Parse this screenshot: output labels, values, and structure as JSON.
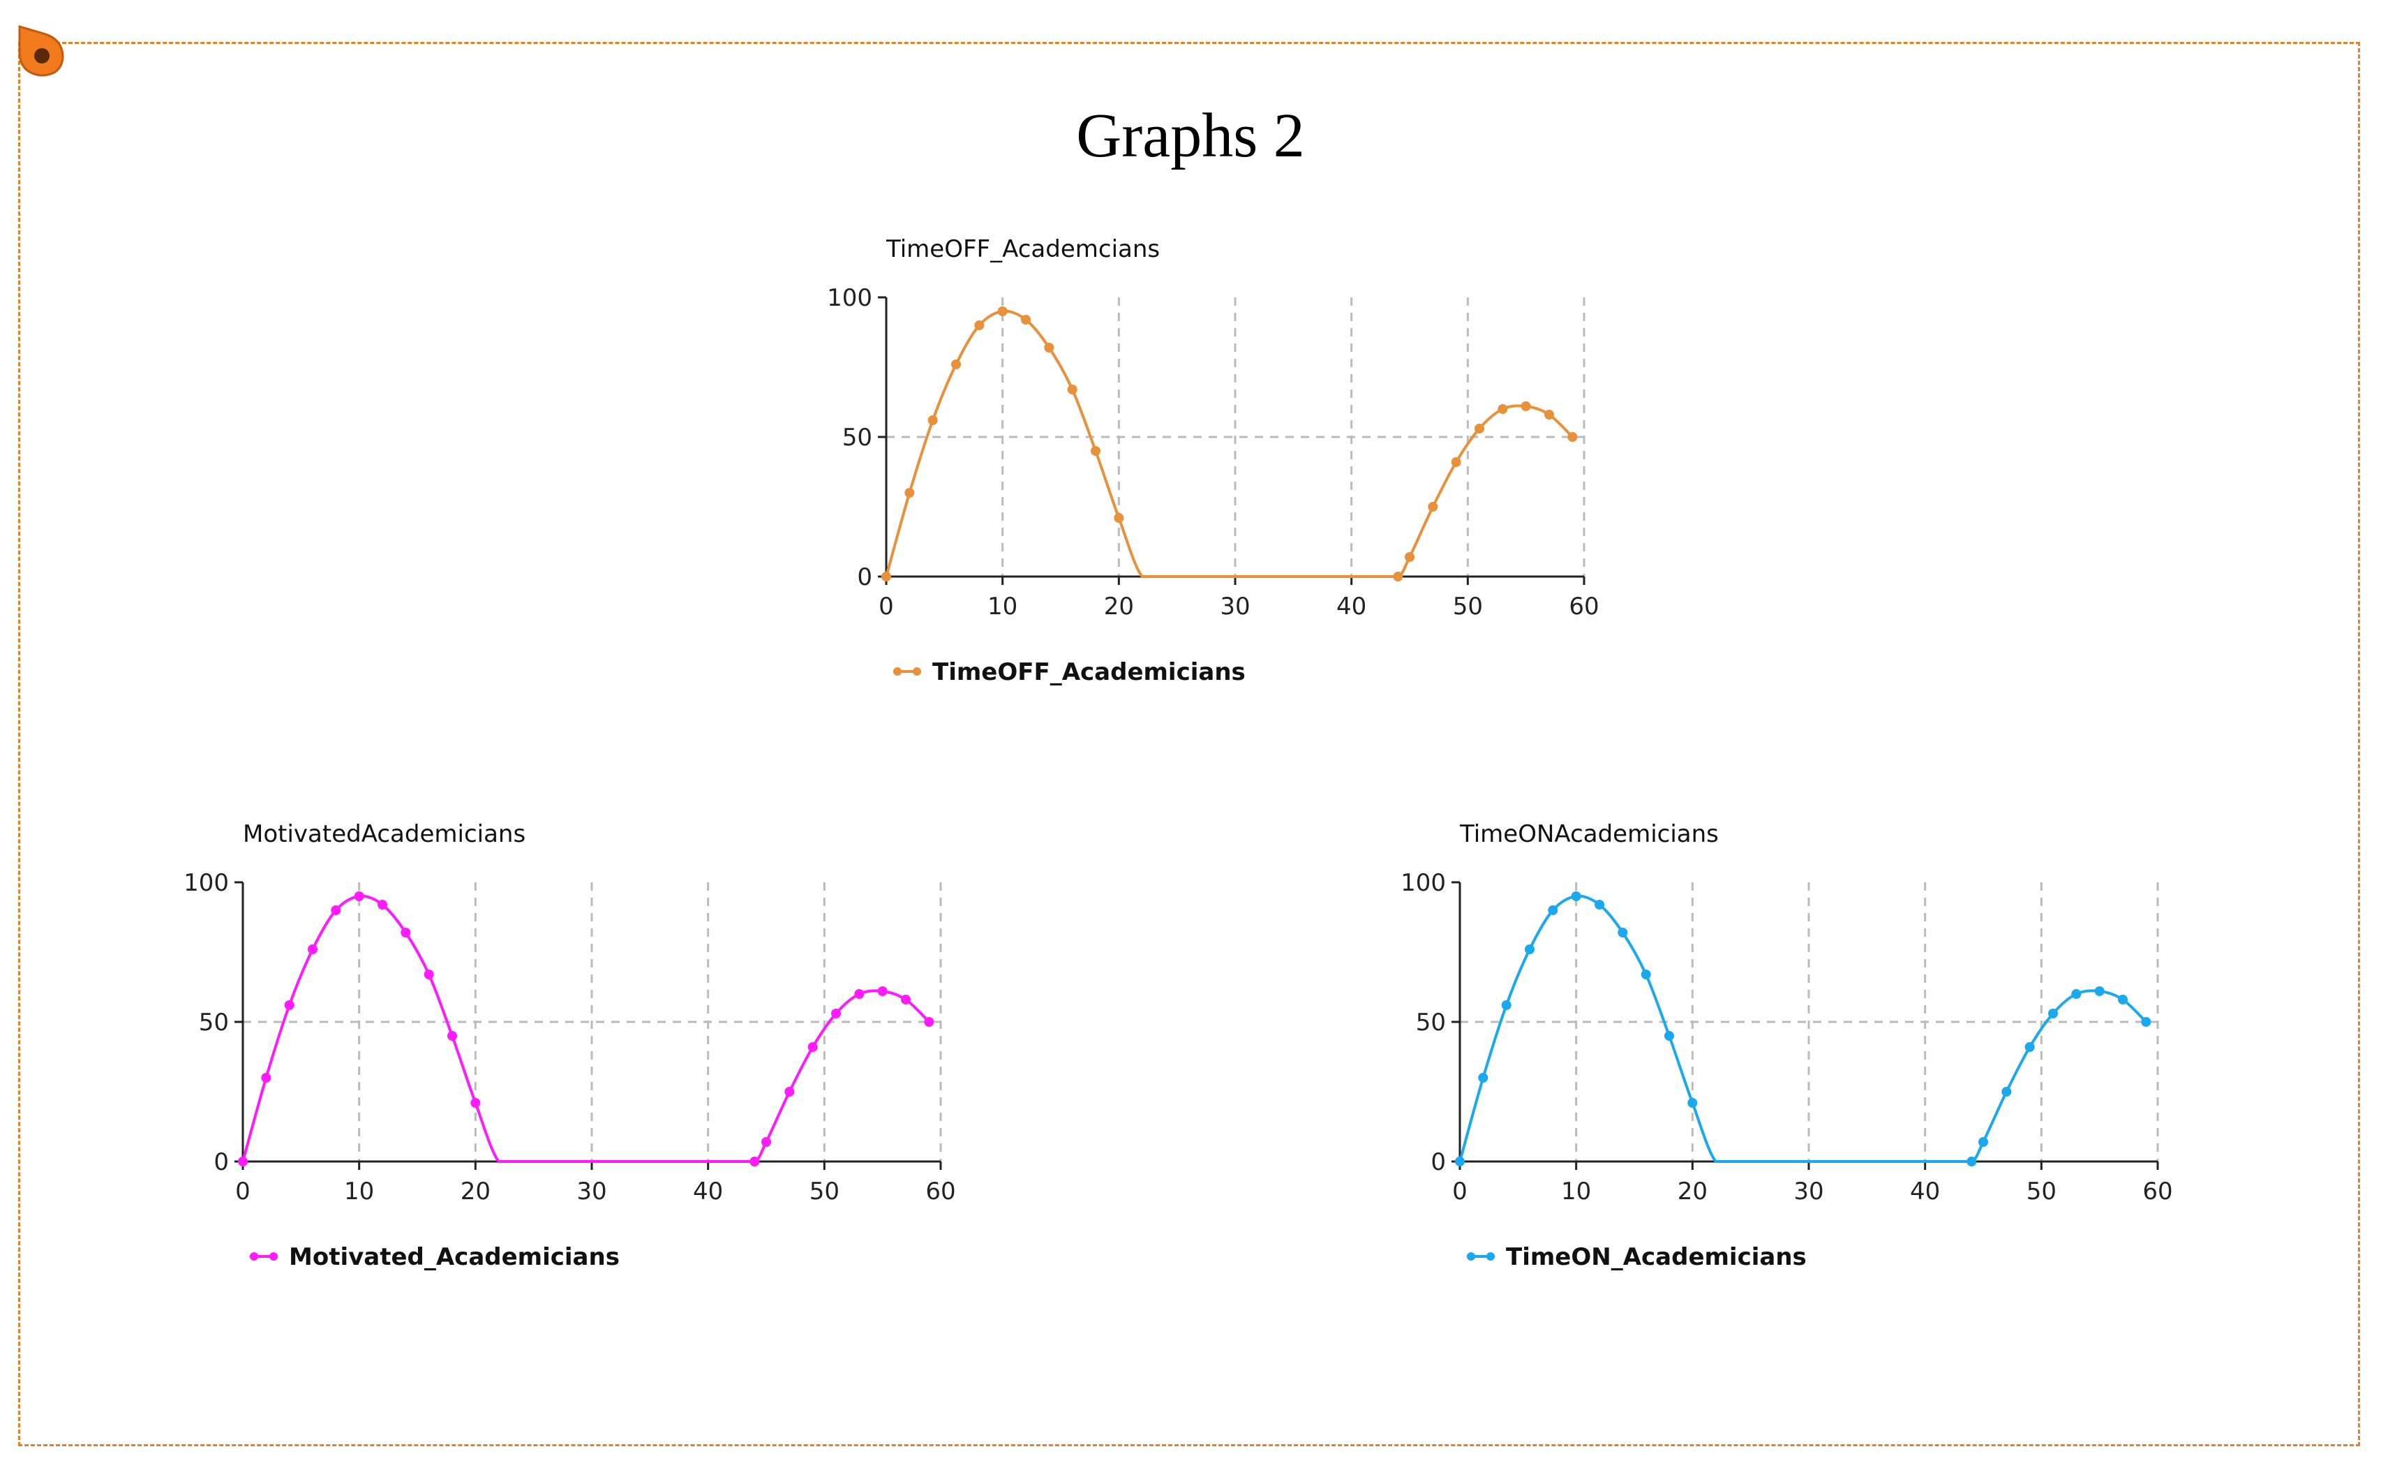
{
  "page": {
    "title": "Graphs 2"
  },
  "chart_data": [
    {
      "type": "line",
      "title": "TimeOFF_Academcians",
      "legend": "TimeOFF_Academicians",
      "color": "#e8913a",
      "xlim": [
        0,
        60
      ],
      "ylim": [
        0,
        100
      ],
      "xticks": [
        "0",
        "10",
        "20",
        "30",
        "40",
        "50",
        "60"
      ],
      "yticks": [
        "0",
        "50",
        "100"
      ],
      "legend_placement": "bottom-left",
      "grid": true,
      "x": [
        0,
        2,
        4,
        6,
        8,
        10,
        12,
        14,
        16,
        18,
        20,
        22,
        24,
        26,
        28,
        30,
        32,
        34,
        36,
        38,
        40,
        42,
        44,
        45,
        47,
        49,
        51,
        53,
        55,
        57,
        59
      ],
      "y": [
        0,
        30,
        56,
        76,
        90,
        95,
        92,
        82,
        67,
        45,
        21,
        0,
        0,
        0,
        0,
        0,
        0,
        0,
        0,
        0,
        0,
        0,
        0,
        7,
        25,
        41,
        53,
        60,
        61,
        58,
        50
      ]
    },
    {
      "type": "line",
      "title": "MotivatedAcademicians",
      "legend": "Motivated_Academicians",
      "color": "#ff1aff",
      "xlim": [
        0,
        60
      ],
      "ylim": [
        0,
        100
      ],
      "xticks": [
        "0",
        "10",
        "20",
        "30",
        "40",
        "50",
        "60"
      ],
      "yticks": [
        "0",
        "50",
        "100"
      ],
      "legend_placement": "bottom-left",
      "grid": true,
      "x": [
        0,
        2,
        4,
        6,
        8,
        10,
        12,
        14,
        16,
        18,
        20,
        22,
        24,
        26,
        28,
        30,
        32,
        34,
        36,
        38,
        40,
        42,
        44,
        45,
        47,
        49,
        51,
        53,
        55,
        57,
        59
      ],
      "y": [
        0,
        30,
        56,
        76,
        90,
        95,
        92,
        82,
        67,
        45,
        21,
        0,
        0,
        0,
        0,
        0,
        0,
        0,
        0,
        0,
        0,
        0,
        0,
        7,
        25,
        41,
        53,
        60,
        61,
        58,
        50
      ]
    },
    {
      "type": "line",
      "title": "TimeONAcademicians",
      "legend": "TimeON_Academicians",
      "color": "#1aa8ee",
      "xlim": [
        0,
        60
      ],
      "ylim": [
        0,
        100
      ],
      "xticks": [
        "0",
        "10",
        "20",
        "30",
        "40",
        "50",
        "60"
      ],
      "yticks": [
        "0",
        "50",
        "100"
      ],
      "legend_placement": "bottom-left",
      "grid": true,
      "x": [
        0,
        2,
        4,
        6,
        8,
        10,
        12,
        14,
        16,
        18,
        20,
        22,
        24,
        26,
        28,
        30,
        32,
        34,
        36,
        38,
        40,
        42,
        44,
        45,
        47,
        49,
        51,
        53,
        55,
        57,
        59
      ],
      "y": [
        0,
        30,
        56,
        76,
        90,
        95,
        92,
        82,
        67,
        45,
        21,
        0,
        0,
        0,
        0,
        0,
        0,
        0,
        0,
        0,
        0,
        0,
        0,
        7,
        25,
        41,
        53,
        60,
        61,
        58,
        50
      ]
    }
  ]
}
